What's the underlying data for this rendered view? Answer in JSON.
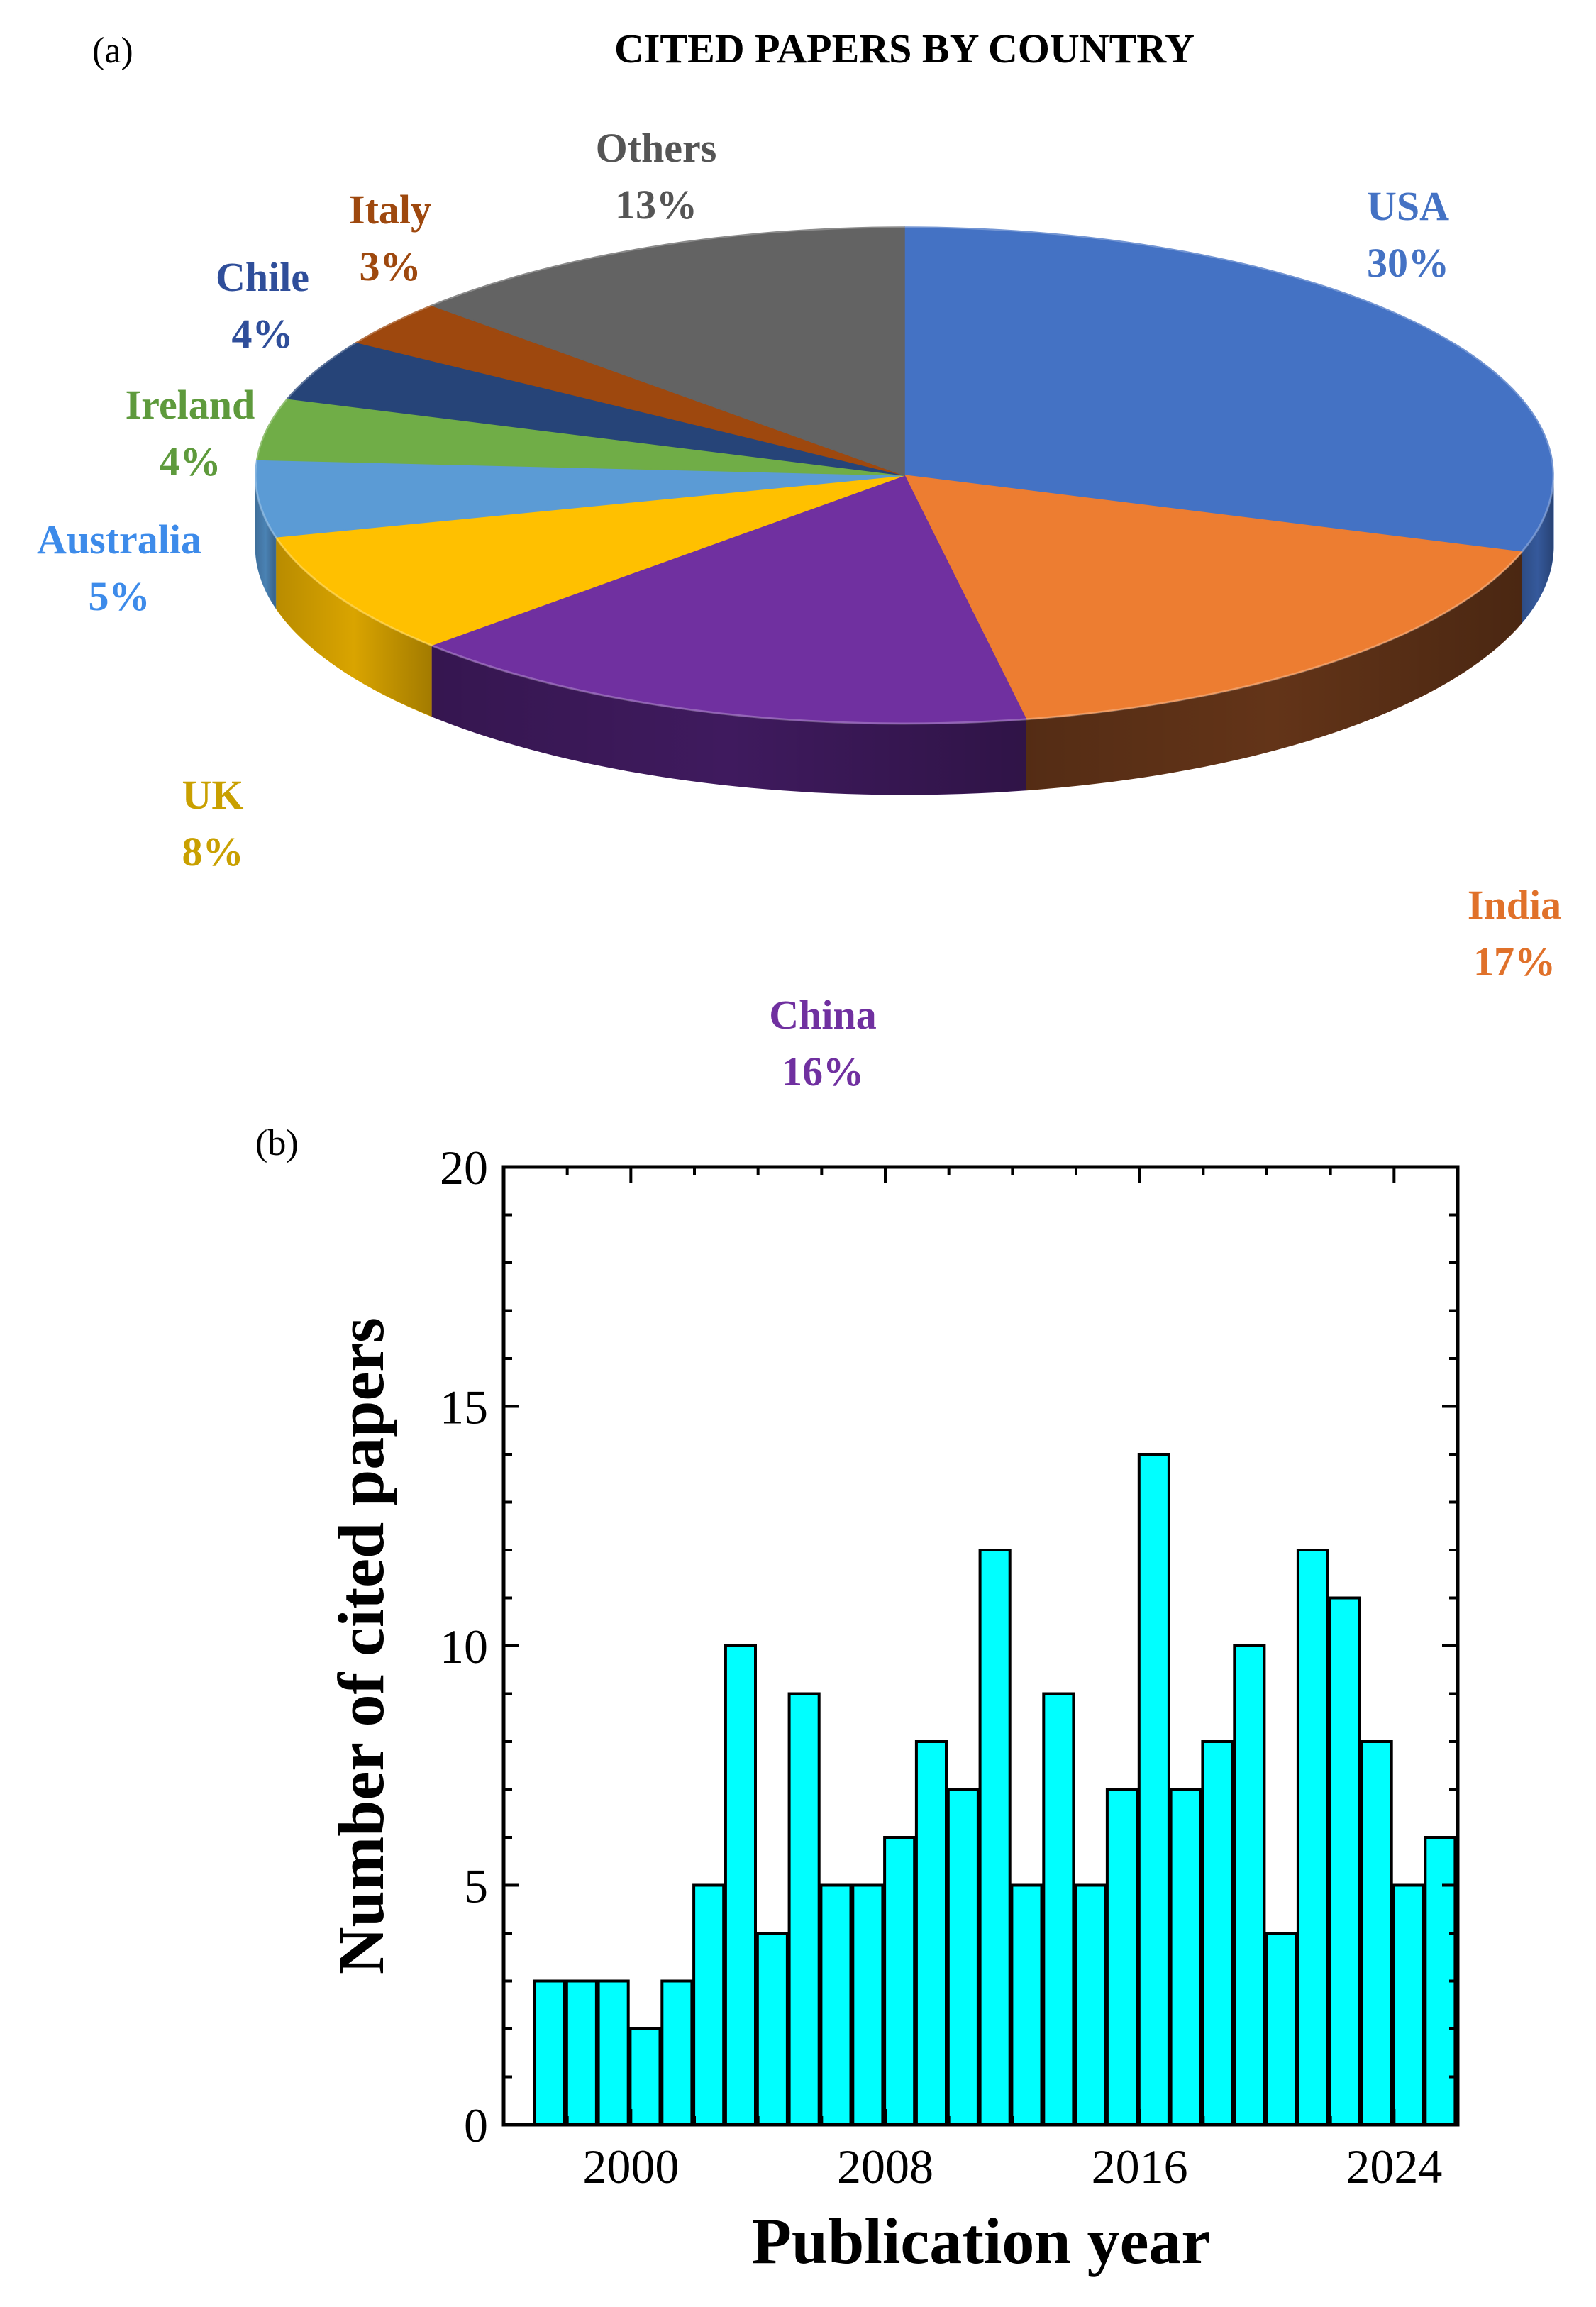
{
  "panel_labels": {
    "a": "(a)",
    "b": "(b)"
  },
  "chart_data": [
    {
      "type": "pie",
      "title": "CITED PAPERS BY COUNTRY",
      "slices": [
        {
          "label": "USA",
          "pct_text": "30%",
          "value": 30,
          "color": "#4472C4",
          "side": "#35599B",
          "label_color": "#4472C4"
        },
        {
          "label": "India",
          "pct_text": "17%",
          "value": 17,
          "color": "#ED7D31",
          "side": "#633418",
          "label_color": "#E0712A"
        },
        {
          "label": "China",
          "pct_text": "16%",
          "value": 16,
          "color": "#7030A0",
          "side": "#3F1A5E",
          "label_color": "#7030A0"
        },
        {
          "label": "UK",
          "pct_text": "8%",
          "value": 8,
          "color": "#FFC000",
          "side": "#D9A400",
          "label_color": "#C9A000"
        },
        {
          "label": "Australia",
          "pct_text": "5%",
          "value": 5,
          "color": "#5B9BD5",
          "side": "#4A82B4",
          "label_color": "#3D8BEA"
        },
        {
          "label": "Ireland",
          "pct_text": "4%",
          "value": 4,
          "color": "#70AD47",
          "side": "#5A8C39",
          "label_color": "#5E9A3C"
        },
        {
          "label": "Chile",
          "pct_text": "4%",
          "value": 4,
          "color": "#264478",
          "side": "#1C3359",
          "label_color": "#2F4E9A"
        },
        {
          "label": "Italy",
          "pct_text": "3%",
          "value": 3,
          "color": "#9E480E",
          "side": "#7A370A",
          "label_color": "#9E480E"
        },
        {
          "label": "Others",
          "pct_text": "13%",
          "value": 13,
          "color": "#636363",
          "side": "#4A4A4A",
          "label_color": "#555555"
        }
      ]
    },
    {
      "type": "bar",
      "title": "",
      "xlabel": "Publication year",
      "ylabel": "Number of cited papers",
      "x": [
        1997,
        1998,
        1999,
        2000,
        2001,
        2002,
        2003,
        2004,
        2005,
        2006,
        2007,
        2008,
        2009,
        2010,
        2011,
        2012,
        2013,
        2014,
        2015,
        2016,
        2017,
        2018,
        2019,
        2020,
        2021,
        2022,
        2023,
        2024,
        2025
      ],
      "values": [
        3,
        3,
        3,
        2,
        3,
        5,
        10,
        4,
        9,
        5,
        5,
        6,
        8,
        7,
        12,
        5,
        9,
        5,
        7,
        14,
        7,
        8,
        10,
        4,
        12,
        11,
        8,
        5,
        6
      ],
      "xlim": [
        1996,
        2026
      ],
      "ylim": [
        0,
        20
      ],
      "xticks": [
        2000,
        2008,
        2016,
        2024
      ],
      "yticks": [
        0,
        5,
        10,
        15,
        20
      ],
      "bar_color": "#00FFFF",
      "edge_color": "#000000"
    }
  ]
}
